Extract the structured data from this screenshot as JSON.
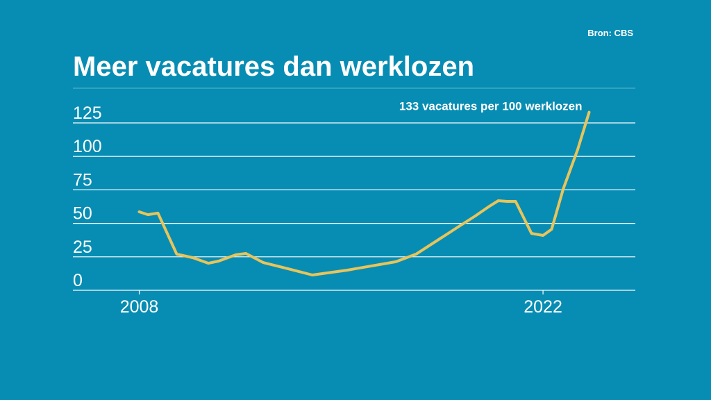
{
  "source": "Bron: CBS",
  "chart_data": {
    "type": "line",
    "title": "Meer vacatures dan werklozen",
    "annotation": "133 vacatures per 100 werklozen",
    "x": [
      2008.0,
      2008.3,
      2008.65,
      2009.3,
      2009.85,
      2010.4,
      2010.75,
      2011.35,
      2011.7,
      2012.3,
      2013.25,
      2014.0,
      2015.2,
      2016.9,
      2017.6,
      2019.05,
      2019.65,
      2020.1,
      2020.45,
      2020.75,
      2021.05,
      2021.6,
      2022.0,
      2022.3,
      2022.7,
      2023.2,
      2023.6
    ],
    "series": [
      {
        "color": "#e8c45a",
        "values": [
          58.6,
          56.5,
          57.6,
          27,
          24.4,
          20.2,
          21.8,
          26.5,
          27.5,
          20.7,
          15.6,
          11.4,
          15,
          21.3,
          27,
          47.2,
          55.5,
          62.2,
          66.9,
          66.4,
          66.4,
          42.5,
          41,
          45.6,
          75.7,
          105,
          133
        ]
      }
    ],
    "xlim": [
      2005.7,
      2025.2
    ],
    "xticks": [
      2008,
      2022
    ],
    "ylim": [
      0,
      125
    ],
    "yticks": [
      0,
      25,
      50,
      75,
      100,
      125
    ],
    "grid": true
  }
}
